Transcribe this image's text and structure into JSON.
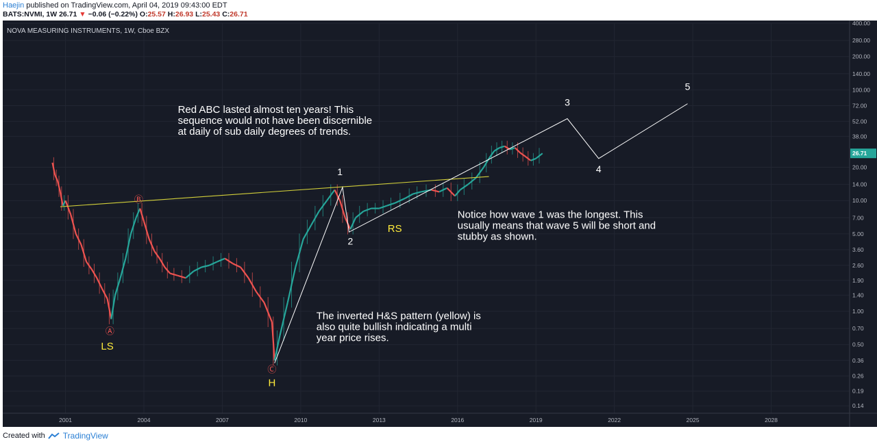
{
  "header": {
    "author": "Haejin",
    "published": "published on TradingView.com, April 04, 2019 09:43:00 EDT",
    "symbol": "BATS:NVMI, 1W",
    "last": "26.71",
    "change": "−0.06 (−0.22%)",
    "o_label": "O:",
    "open": "25.57",
    "h_label": "H:",
    "high": "26.93",
    "l_label": "L:",
    "low": "25.43",
    "c_label": "C:",
    "close": "26.71"
  },
  "chart_title": "NOVA MEASURING INSTRUMENTS, 1W, Cboe BZX",
  "footer": {
    "created_with": "Created with",
    "brand": "TradingView"
  },
  "chart_data": {
    "type": "line",
    "yscale": "log",
    "ylim": [
      0.12,
      400
    ],
    "xlim": [
      1998.6,
      2031
    ],
    "x_ticks": [
      "2001",
      "2004",
      "2007",
      "2010",
      "2013",
      "2016",
      "2019",
      "2022",
      "2025",
      "2028"
    ],
    "y_ticks": [
      "400.00",
      "280.00",
      "200.00",
      "140.00",
      "100.00",
      "72.00",
      "52.00",
      "38.00",
      "20.00",
      "14.00",
      "10.00",
      "7.00",
      "5.00",
      "3.60",
      "2.60",
      "1.90",
      "1.40",
      "1.00",
      "0.70",
      "0.50",
      "0.36",
      "0.26",
      "0.19",
      "0.14"
    ],
    "last_price_label": "26.71",
    "last_price": 26.71,
    "series": [
      {
        "x": [
          2000.5,
          2000.6,
          2000.7,
          2000.8,
          2000.9,
          2001.0,
          2001.2,
          2001.4,
          2001.6,
          2001.8,
          2002.0,
          2002.2,
          2002.4,
          2002.6,
          2002.75,
          2002.9,
          2003.1,
          2003.3,
          2003.5,
          2003.7,
          2003.85,
          2004.0,
          2004.2,
          2004.4,
          2004.6,
          2004.8,
          2005.0,
          2005.3,
          2005.6,
          2005.9,
          2006.2,
          2006.5,
          2006.8,
          2007.1,
          2007.4,
          2007.7,
          2008.0,
          2008.3,
          2008.6,
          2008.9,
          2009.0,
          2009.2,
          2009.5,
          2009.8,
          2010.1,
          2010.4,
          2010.7,
          2011.0,
          2011.3,
          2011.5,
          2011.7,
          2011.9,
          2012.1,
          2012.4,
          2012.7,
          2013.0,
          2013.3,
          2013.6,
          2014.0,
          2014.3,
          2014.6,
          2015.0,
          2015.3,
          2015.6,
          2015.9,
          2016.1,
          2016.4,
          2016.7,
          2017.0,
          2017.2,
          2017.4,
          2017.6,
          2017.8,
          2018.0,
          2018.2,
          2018.4,
          2018.6,
          2018.8,
          2019.0,
          2019.25
        ],
        "y": [
          22,
          17,
          15,
          12,
          9,
          10,
          7.5,
          5,
          4,
          2.8,
          2.4,
          2.0,
          1.6,
          1.3,
          0.85,
          1.4,
          2.0,
          3.0,
          5.0,
          7.0,
          8.5,
          6.5,
          4.5,
          3.5,
          3.0,
          2.5,
          2.2,
          2.1,
          2.0,
          2.3,
          2.5,
          2.6,
          2.8,
          3.0,
          2.7,
          2.5,
          2.0,
          1.5,
          1.2,
          0.8,
          0.36,
          0.6,
          1.2,
          2.5,
          4.5,
          6.0,
          8.0,
          10.0,
          12.5,
          10.0,
          7.0,
          5.5,
          7.0,
          8.0,
          8.5,
          8.5,
          9.0,
          9.5,
          10.5,
          11.5,
          12.0,
          12.5,
          12.0,
          13.0,
          11.0,
          12.5,
          14.0,
          16.0,
          20.0,
          24.0,
          28.0,
          30.0,
          31.0,
          29.0,
          30.0,
          27.0,
          25.0,
          23.0,
          24.0,
          26.71
        ]
      }
    ],
    "neckline": {
      "x": [
        2000.8,
        2017.2
      ],
      "y": [
        8.8,
        16.5
      ]
    },
    "wave_path": {
      "x": [
        2009.0,
        2011.6,
        2011.85,
        2020.2,
        2021.4,
        2024.8
      ],
      "y": [
        0.34,
        13.2,
        5.2,
        55,
        24,
        75
      ]
    },
    "points": [
      {
        "label": "Ⓐ",
        "x": 2002.7,
        "y": 0.62
      },
      {
        "label": "Ⓑ",
        "x": 2003.8,
        "y": 9.6
      },
      {
        "label": "Ⓒ",
        "x": 2008.9,
        "y": 0.28
      }
    ],
    "annotations": [
      {
        "label": "LS",
        "x": 2002.6,
        "y": 0.45
      },
      {
        "label": "H",
        "x": 2008.9,
        "y": 0.21
      },
      {
        "label": "RS",
        "x": 2013.6,
        "y": 5.2
      },
      {
        "label": "1",
        "x": 2011.5,
        "y": 17
      },
      {
        "label": "2",
        "x": 2011.9,
        "y": 4.0
      },
      {
        "label": "3",
        "x": 2020.2,
        "y": 72
      },
      {
        "label": "4",
        "x": 2021.4,
        "y": 18
      },
      {
        "label": "5",
        "x": 2024.8,
        "y": 100
      }
    ],
    "notes": [
      {
        "lines": [
          "Red ABC lasted almost ten years! This",
          "sequence would not have been discernible",
          "at daily of sub daily degrees of trends."
        ],
        "x": 2005.3,
        "y": 62
      },
      {
        "lines": [
          "Notice how wave 1 was the longest. This",
          "usually means that wave 5 will be short and",
          "stubby as shown."
        ],
        "x": 2016.0,
        "y": 7.0
      },
      {
        "lines": [
          "The inverted H&S pattern (yellow) is",
          "also quite bullish indicating a multi",
          "year price rises."
        ],
        "x": 2010.6,
        "y": 0.85
      }
    ]
  }
}
